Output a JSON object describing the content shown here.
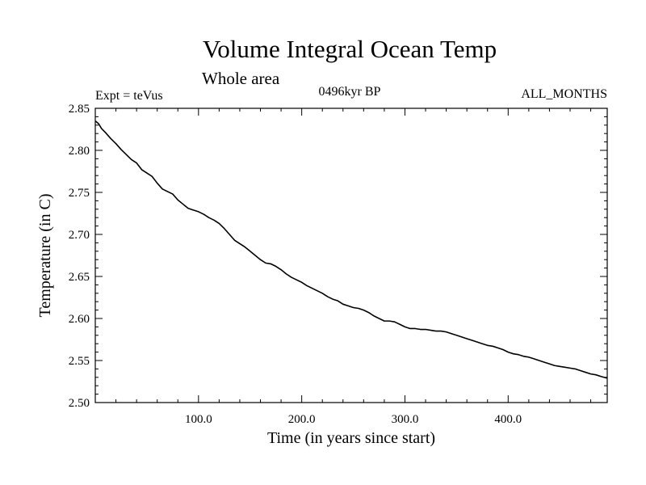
{
  "chart_data": {
    "type": "line",
    "title": "Volume Integral Ocean Temp",
    "subtitle": "Whole area",
    "experiment": "Expt = teVus",
    "period": "0496kyr BP",
    "months": "ALL_MONTHS",
    "xlabel": "Time (in years since start)",
    "ylabel": "Temperature (in C)",
    "xlim": [
      0,
      496
    ],
    "ylim": [
      2.5,
      2.85
    ],
    "x_ticks": [
      "100.0",
      "200.0",
      "300.0",
      "400.0"
    ],
    "y_ticks": [
      "2.50",
      "2.55",
      "2.60",
      "2.65",
      "2.70",
      "2.75",
      "2.80",
      "2.85"
    ],
    "line_color": "#000000",
    "series": [
      {
        "x": [
          0,
          3,
          6,
          10,
          15,
          20,
          25,
          30,
          35,
          40,
          45,
          50,
          55,
          60,
          65,
          70,
          75,
          80,
          85,
          90,
          95,
          100,
          105,
          110,
          115,
          120,
          125,
          130,
          135,
          140,
          145,
          150,
          155,
          160,
          165,
          170,
          175,
          180,
          185,
          190,
          195,
          200,
          205,
          210,
          215,
          220,
          225,
          230,
          235,
          240,
          245,
          250,
          255,
          260,
          265,
          270,
          275,
          280,
          285,
          290,
          295,
          300,
          305,
          310,
          315,
          320,
          325,
          330,
          335,
          340,
          345,
          350,
          355,
          360,
          365,
          370,
          375,
          380,
          385,
          390,
          395,
          400,
          405,
          410,
          415,
          420,
          425,
          430,
          435,
          440,
          445,
          450,
          455,
          460,
          465,
          470,
          475,
          480,
          485,
          490,
          496
        ],
        "y": [
          2.835,
          2.832,
          2.826,
          2.821,
          2.814,
          2.808,
          2.801,
          2.795,
          2.789,
          2.785,
          2.777,
          2.773,
          2.769,
          2.761,
          2.754,
          2.751,
          2.748,
          2.741,
          2.736,
          2.731,
          2.729,
          2.727,
          2.724,
          2.72,
          2.717,
          2.713,
          2.707,
          2.7,
          2.693,
          2.689,
          2.685,
          2.68,
          2.675,
          2.67,
          2.666,
          2.665,
          2.662,
          2.658,
          2.653,
          2.649,
          2.646,
          2.643,
          2.639,
          2.636,
          2.633,
          2.63,
          2.626,
          2.623,
          2.621,
          2.617,
          2.615,
          2.613,
          2.612,
          2.61,
          2.607,
          2.603,
          2.6,
          2.597,
          2.597,
          2.596,
          2.593,
          2.59,
          2.588,
          2.588,
          2.587,
          2.587,
          2.586,
          2.585,
          2.585,
          2.584,
          2.582,
          2.58,
          2.578,
          2.576,
          2.574,
          2.572,
          2.57,
          2.568,
          2.567,
          2.565,
          2.563,
          2.56,
          2.558,
          2.557,
          2.555,
          2.554,
          2.552,
          2.55,
          2.548,
          2.546,
          2.544,
          2.543,
          2.542,
          2.541,
          2.54,
          2.538,
          2.536,
          2.534,
          2.533,
          2.531,
          2.529
        ]
      }
    ]
  }
}
